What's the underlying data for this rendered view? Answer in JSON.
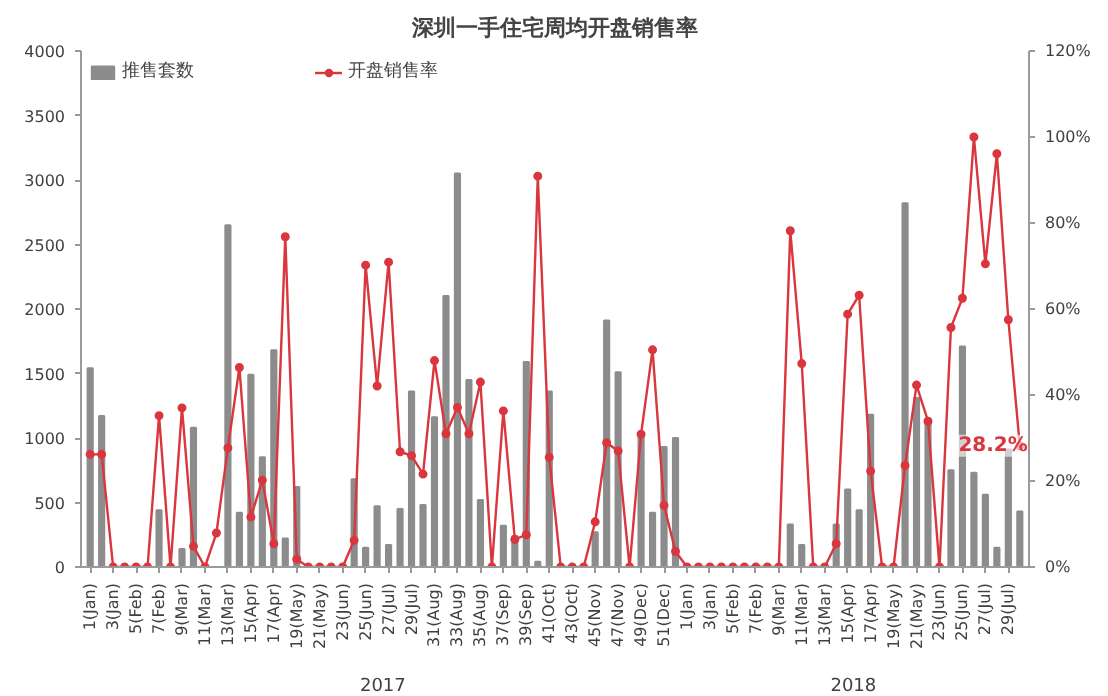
{
  "chart_data": {
    "type": "bar",
    "title": "深圳一手住宅周均开盘销售率",
    "categories": [
      "1(Jan)",
      null,
      "3(Jan)",
      null,
      "5(Feb)",
      null,
      "7(Feb)",
      null,
      "9(Mar)",
      null,
      "11(Mar)",
      null,
      "13(Mar)",
      null,
      "15(Apr)",
      null,
      "17(Apr)",
      null,
      "19(May)",
      null,
      "21(May)",
      null,
      "23(Jun)",
      null,
      "25(Jun)",
      null,
      "27(Jul)",
      null,
      "29(Jul)",
      null,
      "31(Aug)",
      null,
      "33(Aug)",
      null,
      "35(Aug)",
      null,
      "37(Sep)",
      null,
      "39(Sep)",
      null,
      "41(Oct)",
      null,
      "43(Oct)",
      null,
      "45(Nov)",
      null,
      "47(Nov)",
      null,
      "49(Dec)",
      null,
      "51(Dec)",
      null,
      "1(Jan)",
      null,
      "3(Jan)",
      null,
      "5(Feb)",
      null,
      "7(Feb)",
      null,
      "9(Mar)",
      null,
      "11(Mar)",
      null,
      "13(Mar)",
      null,
      "15(Apr)",
      null,
      "17(Apr)",
      null,
      "19(May)",
      null,
      "21(May)",
      null,
      "23(Jun)",
      null,
      "25(Jun)",
      null,
      "27(Jul)",
      null,
      "29(Jul)",
      null
    ],
    "series": [
      {
        "name": "推售套数",
        "color": "#8c8c8c",
        "values": [
          1540,
          1170,
          0,
          0,
          0,
          0,
          440,
          0,
          140,
          1080,
          0,
          0,
          2650,
          420,
          1490,
          850,
          1680,
          220,
          620,
          0,
          0,
          0,
          0,
          680,
          150,
          470,
          170,
          450,
          1360,
          480,
          1160,
          2100,
          3050,
          1450,
          520,
          0,
          320,
          240,
          1590,
          40,
          1360,
          0,
          0,
          0,
          270,
          1910,
          1510,
          0,
          1030,
          420,
          930,
          1000,
          0,
          0,
          0,
          0,
          0,
          0,
          0,
          0,
          0,
          330,
          170,
          0,
          0,
          330,
          600,
          440,
          1180,
          0,
          0,
          2820,
          1310,
          1150,
          0,
          750,
          1710,
          730,
          560,
          150,
          910,
          430
        ]
      },
      {
        "name": "开盘销售率",
        "type": "line",
        "axis": "y2",
        "color": "#d9363e",
        "marker": "circle",
        "values": [
          26.2,
          26.2,
          0,
          0,
          0,
          0,
          35.2,
          0,
          37,
          4.8,
          0,
          7.9,
          27.7,
          46.4,
          11.6,
          20.2,
          5.4,
          76.8,
          1.8,
          0,
          0,
          0,
          0,
          6.2,
          70.2,
          42.1,
          70.9,
          26.8,
          25.9,
          21.6,
          48,
          31,
          37.1,
          31,
          43,
          0,
          36.3,
          6.4,
          7.5,
          90.9,
          25.5,
          0,
          0,
          0,
          10.5,
          28.9,
          27,
          0,
          30.9,
          50.5,
          14.3,
          3.6,
          0,
          0,
          0,
          0,
          0,
          0,
          0,
          0,
          0,
          78.2,
          47.3,
          0,
          0,
          5.4,
          58.8,
          63.2,
          22.3,
          0,
          0,
          23.6,
          42.3,
          33.9,
          0,
          55.7,
          62.5,
          100,
          70.5,
          96.1,
          57.5,
          28.2
        ],
        "value_labels": [
          null,
          null,
          null,
          null,
          null,
          null,
          null,
          null,
          null,
          null,
          null,
          null,
          null,
          null,
          null,
          null,
          null,
          null,
          null,
          null,
          null,
          null,
          null,
          null,
          null,
          null,
          null,
          null,
          null,
          null,
          null,
          null,
          null,
          null,
          null,
          null,
          null,
          null,
          null,
          null,
          null,
          null,
          null,
          null,
          null,
          null,
          null,
          null,
          null,
          null,
          null,
          null,
          null,
          null,
          null,
          null,
          null,
          null,
          null,
          null,
          null,
          null,
          null,
          null,
          null,
          null,
          null,
          null,
          null,
          null,
          null,
          null,
          null,
          null,
          null,
          null,
          null,
          null,
          null,
          null,
          null,
          "28.2%"
        ]
      }
    ],
    "ylim": [
      0,
      4000
    ],
    "yticks": [
      0,
      500,
      1000,
      1500,
      2000,
      2500,
      3000,
      3500,
      4000
    ],
    "y2lim": [
      0,
      120
    ],
    "y2ticks": [
      {
        "value": 0,
        "label": "0%"
      },
      {
        "value": 20,
        "label": "20%"
      },
      {
        "value": 40,
        "label": "40%"
      },
      {
        "value": 60,
        "label": "60%"
      },
      {
        "value": 80,
        "label": "80%"
      },
      {
        "value": 100,
        "label": "100%"
      },
      {
        "value": 120,
        "label": "120%"
      }
    ],
    "annotations": [
      "2017",
      "2018"
    ],
    "legend": "top",
    "grid": false
  }
}
